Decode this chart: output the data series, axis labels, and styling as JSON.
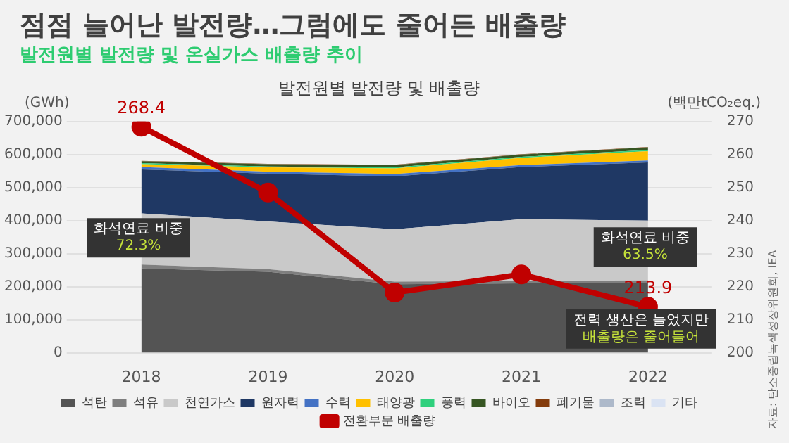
{
  "chart_data": {
    "type": "area",
    "title": "발전원별 발전량 및 배출량",
    "stacked": true,
    "categories": [
      "2018",
      "2019",
      "2020",
      "2021",
      "2022"
    ],
    "series": [
      {
        "name": "석탄",
        "color": "#545454",
        "values": [
          255000,
          245000,
          207000,
          210000,
          212000
        ]
      },
      {
        "name": "석유",
        "color": "#7f7f7f",
        "values": [
          12000,
          8000,
          8000,
          7000,
          7000
        ]
      },
      {
        "name": "천연가스",
        "color": "#c9c9c9",
        "values": [
          155000,
          144000,
          159000,
          187000,
          181000
        ]
      },
      {
        "name": "원자력",
        "color": "#1f3864",
        "values": [
          133000,
          145000,
          160000,
          158000,
          176000
        ]
      },
      {
        "name": "수력",
        "color": "#4472c4",
        "values": [
          7000,
          6000,
          7000,
          6000,
          6000
        ]
      },
      {
        "name": "태양광",
        "color": "#ffc000",
        "values": [
          9000,
          13000,
          17000,
          22000,
          28000
        ]
      },
      {
        "name": "풍력",
        "color": "#2fd07d",
        "values": [
          3000,
          3000,
          3000,
          3000,
          4000
        ]
      },
      {
        "name": "바이오",
        "color": "#375623",
        "values": [
          6000,
          7000,
          7000,
          7000,
          8000
        ]
      },
      {
        "name": "폐기물",
        "color": "#843c0c",
        "values": [
          1000,
          1000,
          1000,
          1000,
          1000
        ]
      },
      {
        "name": "조력",
        "color": "#adb9ca",
        "values": [
          null,
          null,
          null,
          null,
          null
        ]
      },
      {
        "name": "기타",
        "color": "#dae3f3",
        "values": [
          null,
          null,
          null,
          null,
          null
        ]
      },
      {
        "name": "전환부문 배출량",
        "type": "line",
        "axis": "y2",
        "marker": "circle",
        "color": "#c00000",
        "values": [
          268.4,
          248.5,
          218.2,
          223.7,
          213.9
        ],
        "value_labels": [
          "268.4",
          null,
          null,
          null,
          "213.9"
        ]
      }
    ],
    "ylabel": "(GWh)",
    "y2label": "(백만tCO₂eq.)",
    "ylim": [
      0,
      700000
    ],
    "yticks": [
      {
        "value": 0,
        "label": "0"
      },
      {
        "value": 100000,
        "label": "100,000"
      },
      {
        "value": 200000,
        "label": "200,000"
      },
      {
        "value": 300000,
        "label": "300,000"
      },
      {
        "value": 400000,
        "label": "400,000"
      },
      {
        "value": 500000,
        "label": "500,000"
      },
      {
        "value": 600000,
        "label": "600,000"
      },
      {
        "value": 700000,
        "label": "700,000"
      }
    ],
    "y2lim": [
      200,
      270
    ],
    "y2ticks": [
      200,
      210,
      220,
      230,
      240,
      250,
      260,
      270
    ],
    "grid": "y",
    "legend": "bottom",
    "annotations": [
      "점점 늘어난 발전량…그럼에도 줄어든 배출량",
      "발전원별 발전량 및 온실가스 배출량 추이",
      "화석연료 비중\n72.3%",
      "화석연료 비중\n63.5%",
      "전력 생산은 늘었지만\n배출량은 줄어들어",
      "자료: 탄소중립녹색성장위원회, IEA"
    ]
  }
}
